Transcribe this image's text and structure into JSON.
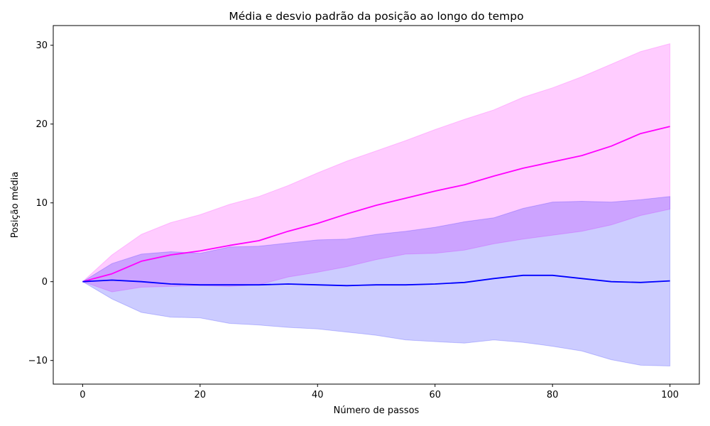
{
  "chart_data": {
    "type": "line",
    "title": "Média e desvio padrão da posição ao longo do tempo",
    "xlabel": "Número de passos",
    "ylabel": "Posição média",
    "xlim": [
      -5,
      105
    ],
    "ylim": [
      -13,
      32.5
    ],
    "x_ticks": [
      0,
      20,
      40,
      60,
      80,
      100
    ],
    "x_tick_labels": [
      "0",
      "20",
      "40",
      "60",
      "80",
      "100"
    ],
    "y_ticks": [
      -10,
      0,
      10,
      20,
      30
    ],
    "y_tick_labels": [
      "−10",
      "0",
      "10",
      "20",
      "30"
    ],
    "grid": false,
    "legend": "none",
    "series": [
      {
        "color": "#ff00ff",
        "band_color": "#ff00ff",
        "x": [
          0,
          5,
          10,
          15,
          20,
          25,
          30,
          35,
          40,
          45,
          50,
          55,
          60,
          65,
          70,
          75,
          80,
          85,
          90,
          95,
          100
        ],
        "mean": [
          0,
          1.0,
          2.6,
          3.4,
          3.9,
          4.6,
          5.2,
          6.4,
          7.4,
          8.6,
          9.7,
          10.6,
          11.5,
          12.3,
          13.4,
          14.4,
          15.2,
          16.0,
          17.2,
          18.8,
          19.7
        ],
        "upper": [
          0,
          3.4,
          6.0,
          7.5,
          8.5,
          9.8,
          10.8,
          12.2,
          13.8,
          15.3,
          16.6,
          17.9,
          19.3,
          20.6,
          21.8,
          23.4,
          24.6,
          26.0,
          27.6,
          29.2,
          30.2
        ],
        "lower": [
          0,
          -1.3,
          -0.7,
          -0.6,
          -0.5,
          -0.6,
          -0.4,
          0.6,
          1.2,
          1.9,
          2.8,
          3.5,
          3.6,
          4.0,
          4.8,
          5.4,
          5.9,
          6.4,
          7.2,
          8.4,
          9.2
        ]
      },
      {
        "color": "#0000ff",
        "band_color": "#0000ff",
        "x": [
          0,
          5,
          10,
          15,
          20,
          25,
          30,
          35,
          40,
          45,
          50,
          55,
          60,
          65,
          70,
          75,
          80,
          85,
          90,
          95,
          100
        ],
        "mean": [
          0,
          0.2,
          0.0,
          -0.3,
          -0.4,
          -0.4,
          -0.4,
          -0.3,
          -0.4,
          -0.5,
          -0.4,
          -0.4,
          -0.3,
          -0.1,
          0.4,
          0.8,
          0.8,
          0.4,
          0.0,
          -0.1,
          0.1
        ],
        "upper": [
          0,
          2.3,
          3.5,
          3.8,
          3.6,
          4.4,
          4.5,
          4.9,
          5.3,
          5.4,
          6.0,
          6.4,
          6.9,
          7.6,
          8.1,
          9.3,
          10.1,
          10.2,
          10.1,
          10.4,
          10.8
        ],
        "lower": [
          0,
          -2.2,
          -3.9,
          -4.5,
          -4.6,
          -5.3,
          -5.5,
          -5.8,
          -6.0,
          -6.4,
          -6.8,
          -7.4,
          -7.6,
          -7.8,
          -7.4,
          -7.7,
          -8.2,
          -8.8,
          -9.9,
          -10.6,
          -10.7
        ]
      }
    ]
  }
}
